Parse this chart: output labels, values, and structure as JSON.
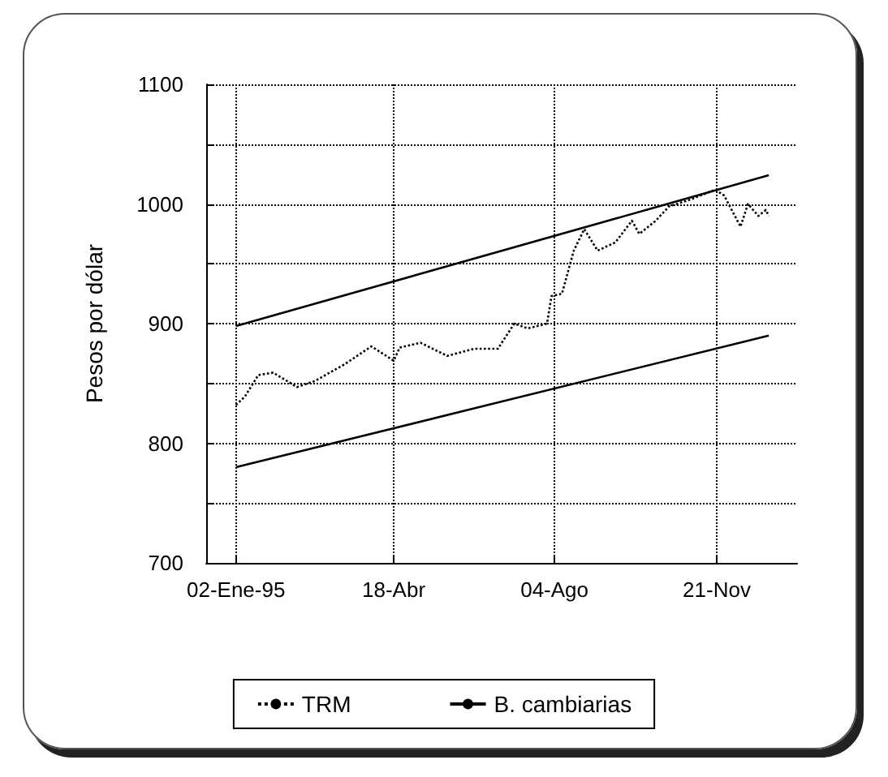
{
  "chart_data": {
    "type": "line",
    "ylabel": "Pesos por dólar",
    "xlim": [
      "1994-12-13",
      "1996-01-14"
    ],
    "xticks": [
      {
        "value": "1995-01-02",
        "label": "02-Ene-95"
      },
      {
        "value": "1995-04-18",
        "label": "18-Abr"
      },
      {
        "value": "1995-08-04",
        "label": "04-Ago"
      },
      {
        "value": "1995-11-21",
        "label": "21-Nov"
      }
    ],
    "ylim": [
      700,
      1100
    ],
    "yticks": [
      700,
      {
        "value": 750,
        "label": null
      },
      800,
      {
        "value": 850,
        "label": null
      },
      900,
      {
        "value": 950,
        "label": null
      },
      1000,
      {
        "value": 1050,
        "label": null
      },
      1100
    ],
    "grid": true,
    "legend": "bottom",
    "marker": "none",
    "series": [
      {
        "name": "TRM",
        "color": "#000000",
        "line_style": "dotted",
        "x": [
          "1995-01-02",
          "1995-01-08",
          "1995-01-17",
          "1995-01-27",
          "1995-02-12",
          "1995-02-24",
          "1995-03-16",
          "1995-04-03",
          "1995-04-18",
          "1995-04-22",
          "1995-05-06",
          "1995-05-24",
          "1995-06-11",
          "1995-06-27",
          "1995-07-08",
          "1995-07-17",
          "1995-07-30",
          "1995-08-02",
          "1995-08-09",
          "1995-08-17",
          "1995-08-24",
          "1995-09-02",
          "1995-09-14",
          "1995-09-25",
          "1995-09-30",
          "1995-10-11",
          "1995-10-20",
          "1995-11-04",
          "1995-11-20",
          "1995-11-26",
          "1995-12-07",
          "1995-12-12",
          "1995-12-19",
          "1995-12-24",
          "1995-12-26"
        ],
        "values": [
          832,
          839,
          857,
          859,
          847,
          852,
          866,
          881,
          869,
          880,
          884,
          873,
          879,
          879,
          900,
          896,
          900,
          923,
          925,
          961,
          979,
          961,
          968,
          986,
          975,
          986,
          998,
          1004,
          1012,
          1007,
          981,
          1000,
          990,
          995,
          990
        ]
      },
      {
        "name": "B. cambiarias",
        "color": "#000000",
        "line_style": "solid",
        "x": [
          "1995-01-02",
          "1995-12-26"
        ],
        "values": [
          898,
          1024
        ]
      },
      {
        "color": "#000000",
        "line_style": "solid",
        "x": [
          "1995-01-02",
          "1995-12-26"
        ],
        "values": [
          780,
          890
        ]
      }
    ]
  }
}
